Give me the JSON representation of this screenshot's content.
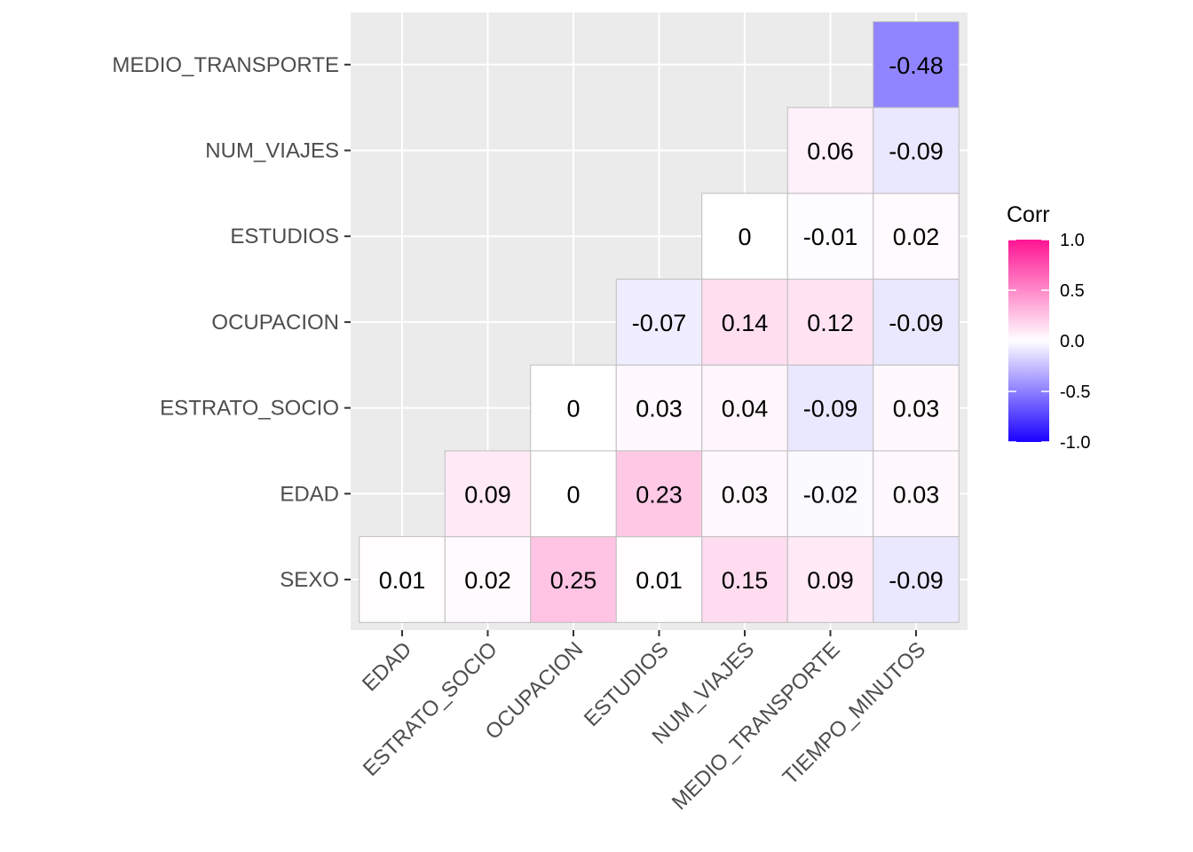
{
  "chart_data": {
    "type": "heatmap",
    "x_categories": [
      "EDAD",
      "ESTRATO_SOCIO",
      "OCUPACION",
      "ESTUDIOS",
      "NUM_VIAJES",
      "MEDIO_TRANSPORTE",
      "TIEMPO_MINUTOS"
    ],
    "y_categories": [
      "SEXO",
      "EDAD",
      "ESTRATO_SOCIO",
      "OCUPACION",
      "ESTUDIOS",
      "NUM_VIAJES",
      "MEDIO_TRANSPORTE"
    ],
    "cells": [
      {
        "x": "EDAD",
        "y": "SEXO",
        "value": 0.01,
        "label": "0.01"
      },
      {
        "x": "ESTRATO_SOCIO",
        "y": "SEXO",
        "value": 0.02,
        "label": "0.02"
      },
      {
        "x": "OCUPACION",
        "y": "SEXO",
        "value": 0.25,
        "label": "0.25"
      },
      {
        "x": "ESTUDIOS",
        "y": "SEXO",
        "value": 0.01,
        "label": "0.01"
      },
      {
        "x": "NUM_VIAJES",
        "y": "SEXO",
        "value": 0.15,
        "label": "0.15"
      },
      {
        "x": "MEDIO_TRANSPORTE",
        "y": "SEXO",
        "value": 0.09,
        "label": "0.09"
      },
      {
        "x": "TIEMPO_MINUTOS",
        "y": "SEXO",
        "value": -0.09,
        "label": "-0.09"
      },
      {
        "x": "ESTRATO_SOCIO",
        "y": "EDAD",
        "value": 0.09,
        "label": "0.09"
      },
      {
        "x": "OCUPACION",
        "y": "EDAD",
        "value": 0,
        "label": "0"
      },
      {
        "x": "ESTUDIOS",
        "y": "EDAD",
        "value": 0.23,
        "label": "0.23"
      },
      {
        "x": "NUM_VIAJES",
        "y": "EDAD",
        "value": 0.03,
        "label": "0.03"
      },
      {
        "x": "MEDIO_TRANSPORTE",
        "y": "EDAD",
        "value": -0.02,
        "label": "-0.02"
      },
      {
        "x": "TIEMPO_MINUTOS",
        "y": "EDAD",
        "value": 0.03,
        "label": "0.03"
      },
      {
        "x": "OCUPACION",
        "y": "ESTRATO_SOCIO",
        "value": 0,
        "label": "0"
      },
      {
        "x": "ESTUDIOS",
        "y": "ESTRATO_SOCIO",
        "value": 0.03,
        "label": "0.03"
      },
      {
        "x": "NUM_VIAJES",
        "y": "ESTRATO_SOCIO",
        "value": 0.04,
        "label": "0.04"
      },
      {
        "x": "MEDIO_TRANSPORTE",
        "y": "ESTRATO_SOCIO",
        "value": -0.09,
        "label": "-0.09"
      },
      {
        "x": "TIEMPO_MINUTOS",
        "y": "ESTRATO_SOCIO",
        "value": 0.03,
        "label": "0.03"
      },
      {
        "x": "ESTUDIOS",
        "y": "OCUPACION",
        "value": -0.07,
        "label": "-0.07"
      },
      {
        "x": "NUM_VIAJES",
        "y": "OCUPACION",
        "value": 0.14,
        "label": "0.14"
      },
      {
        "x": "MEDIO_TRANSPORTE",
        "y": "OCUPACION",
        "value": 0.12,
        "label": "0.12"
      },
      {
        "x": "TIEMPO_MINUTOS",
        "y": "OCUPACION",
        "value": -0.09,
        "label": "-0.09"
      },
      {
        "x": "NUM_VIAJES",
        "y": "ESTUDIOS",
        "value": 0,
        "label": "0"
      },
      {
        "x": "MEDIO_TRANSPORTE",
        "y": "ESTUDIOS",
        "value": -0.01,
        "label": "-0.01"
      },
      {
        "x": "TIEMPO_MINUTOS",
        "y": "ESTUDIOS",
        "value": 0.02,
        "label": "0.02"
      },
      {
        "x": "MEDIO_TRANSPORTE",
        "y": "NUM_VIAJES",
        "value": 0.06,
        "label": "0.06"
      },
      {
        "x": "TIEMPO_MINUTOS",
        "y": "NUM_VIAJES",
        "value": -0.09,
        "label": "-0.09"
      },
      {
        "x": "TIEMPO_MINUTOS",
        "y": "MEDIO_TRANSPORTE",
        "value": -0.48,
        "label": "-0.48"
      }
    ],
    "legend": {
      "title": "Corr",
      "position": "right",
      "range": [
        -1,
        1
      ],
      "ticks": [
        1.0,
        0.5,
        0.0,
        -0.5,
        -1.0
      ],
      "tick_labels": [
        "1.0",
        "0.5",
        "0.0",
        "-0.5",
        "-1.0"
      ]
    },
    "colors": {
      "high": "#FF1493",
      "mid": "#FFFFFF",
      "low": "#1A00FF",
      "panel_background": "#EBEBEB",
      "grid": "#FFFFFF",
      "tile_border": "#BEBEBE"
    },
    "grid": true
  }
}
